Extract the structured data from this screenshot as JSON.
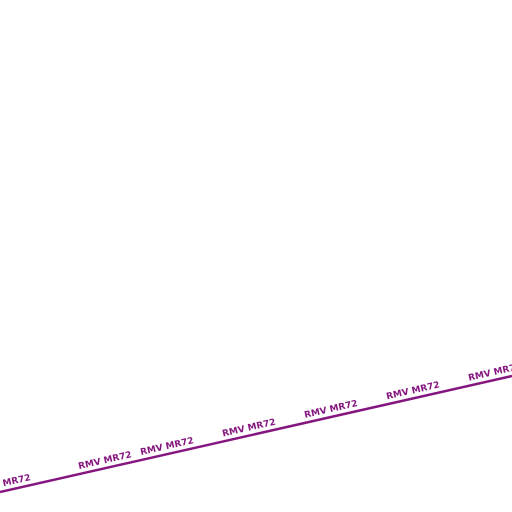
{
  "route": {
    "label": "RMV MR72"
  }
}
